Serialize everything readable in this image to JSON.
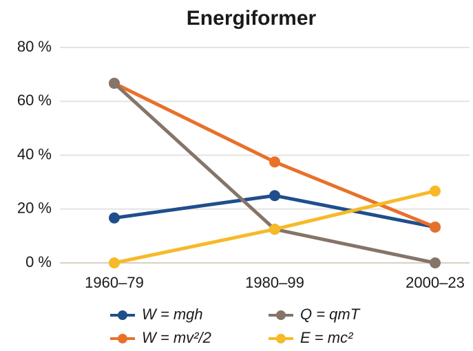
{
  "chart_data": {
    "type": "line",
    "title": "Energiformer",
    "categories": [
      "1960–79",
      "1980–99",
      "2000–23"
    ],
    "series": [
      {
        "name": "W = mgh",
        "color": "#1f4e8c",
        "values": [
          16.7,
          25,
          13.3
        ]
      },
      {
        "name": "W = mv²/2",
        "color": "#e8712a",
        "values": [
          66.7,
          37.5,
          13.3
        ]
      },
      {
        "name": "Q = qmT",
        "color": "#857469",
        "values": [
          66.7,
          12.5,
          0
        ]
      },
      {
        "name": "E = mc²",
        "color": "#f7b928",
        "values": [
          0,
          12.5,
          26.7
        ]
      }
    ],
    "ylim": [
      0,
      80
    ],
    "yticks": [
      {
        "value": 0,
        "label": "0 %"
      },
      {
        "value": 20,
        "label": "20 %"
      },
      {
        "value": 40,
        "label": "40 %"
      },
      {
        "value": 60,
        "label": "60 %"
      },
      {
        "value": 80,
        "label": "80 %"
      }
    ],
    "grid": true,
    "legend": "bottom"
  }
}
